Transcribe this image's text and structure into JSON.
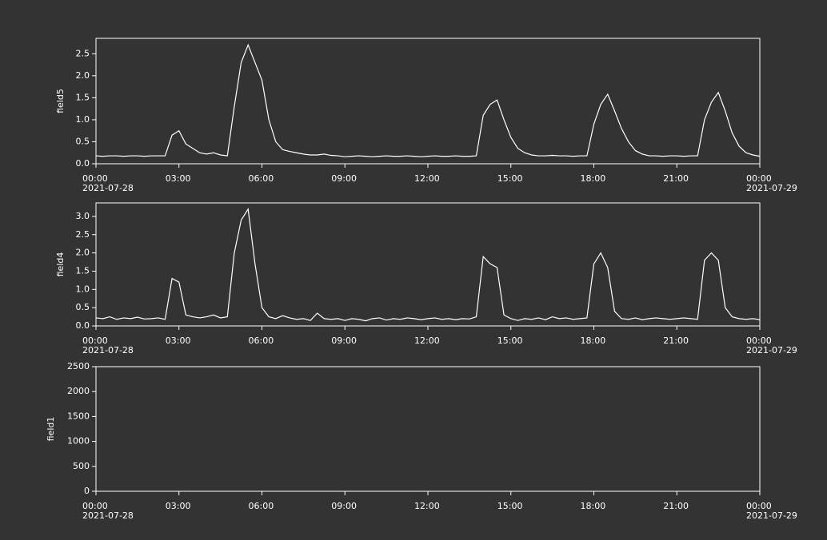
{
  "chart_data": [
    {
      "type": "line",
      "ylabel": "field5",
      "x": [
        "2021-07-28T00:00",
        "2021-07-28T00:15",
        "2021-07-28T00:30",
        "2021-07-28T00:45",
        "2021-07-28T01:00",
        "2021-07-28T01:15",
        "2021-07-28T01:30",
        "2021-07-28T01:45",
        "2021-07-28T02:00",
        "2021-07-28T02:15",
        "2021-07-28T02:30",
        "2021-07-28T02:45",
        "2021-07-28T03:00",
        "2021-07-28T03:15",
        "2021-07-28T03:30",
        "2021-07-28T03:45",
        "2021-07-28T04:00",
        "2021-07-28T04:15",
        "2021-07-28T04:30",
        "2021-07-28T04:45",
        "2021-07-28T05:00",
        "2021-07-28T05:15",
        "2021-07-28T05:30",
        "2021-07-28T05:45",
        "2021-07-28T06:00",
        "2021-07-28T06:15",
        "2021-07-28T06:30",
        "2021-07-28T06:45",
        "2021-07-28T07:00",
        "2021-07-28T07:15",
        "2021-07-28T07:30",
        "2021-07-28T07:45",
        "2021-07-28T08:00",
        "2021-07-28T08:15",
        "2021-07-28T08:30",
        "2021-07-28T08:45",
        "2021-07-28T09:00",
        "2021-07-28T09:15",
        "2021-07-28T09:30",
        "2021-07-28T09:45",
        "2021-07-28T10:00",
        "2021-07-28T10:15",
        "2021-07-28T10:30",
        "2021-07-28T10:45",
        "2021-07-28T11:00",
        "2021-07-28T11:15",
        "2021-07-28T11:30",
        "2021-07-28T11:45",
        "2021-07-28T12:00",
        "2021-07-28T12:15",
        "2021-07-28T12:30",
        "2021-07-28T12:45",
        "2021-07-28T13:00",
        "2021-07-28T13:15",
        "2021-07-28T13:30",
        "2021-07-28T13:45",
        "2021-07-28T14:00",
        "2021-07-28T14:15",
        "2021-07-28T14:30",
        "2021-07-28T14:45",
        "2021-07-28T15:00",
        "2021-07-28T15:15",
        "2021-07-28T15:30",
        "2021-07-28T15:45",
        "2021-07-28T16:00",
        "2021-07-28T16:15",
        "2021-07-28T16:30",
        "2021-07-28T16:45",
        "2021-07-28T17:00",
        "2021-07-28T17:15",
        "2021-07-28T17:30",
        "2021-07-28T17:45",
        "2021-07-28T18:00",
        "2021-07-28T18:15",
        "2021-07-28T18:30",
        "2021-07-28T18:45",
        "2021-07-28T19:00",
        "2021-07-28T19:15",
        "2021-07-28T19:30",
        "2021-07-28T19:45",
        "2021-07-28T20:00",
        "2021-07-28T20:15",
        "2021-07-28T20:30",
        "2021-07-28T20:45",
        "2021-07-28T21:00",
        "2021-07-28T21:15",
        "2021-07-28T21:30",
        "2021-07-28T21:45",
        "2021-07-28T22:00",
        "2021-07-28T22:15",
        "2021-07-28T22:30",
        "2021-07-28T22:45",
        "2021-07-28T23:00",
        "2021-07-28T23:15",
        "2021-07-28T23:30",
        "2021-07-28T23:45",
        "2021-07-29T00:00"
      ],
      "values": [
        0.18,
        0.17,
        0.18,
        0.18,
        0.17,
        0.18,
        0.18,
        0.17,
        0.18,
        0.18,
        0.18,
        0.65,
        0.75,
        0.45,
        0.35,
        0.25,
        0.22,
        0.25,
        0.2,
        0.18,
        1.3,
        2.3,
        2.7,
        2.3,
        1.9,
        1.0,
        0.5,
        0.32,
        0.28,
        0.25,
        0.22,
        0.2,
        0.2,
        0.22,
        0.19,
        0.18,
        0.16,
        0.17,
        0.18,
        0.17,
        0.16,
        0.17,
        0.18,
        0.17,
        0.17,
        0.18,
        0.17,
        0.16,
        0.17,
        0.18,
        0.17,
        0.17,
        0.18,
        0.17,
        0.17,
        0.18,
        1.1,
        1.35,
        1.45,
        1.0,
        0.6,
        0.35,
        0.25,
        0.2,
        0.18,
        0.18,
        0.19,
        0.18,
        0.18,
        0.17,
        0.18,
        0.18,
        0.9,
        1.35,
        1.58,
        1.2,
        0.8,
        0.5,
        0.3,
        0.22,
        0.18,
        0.18,
        0.17,
        0.18,
        0.18,
        0.17,
        0.18,
        0.18,
        1.0,
        1.4,
        1.62,
        1.2,
        0.7,
        0.4,
        0.25,
        0.2,
        0.17
      ],
      "color": "#ffffff",
      "xlim": [
        "2021-07-28T00:00",
        "2021-07-29T00:00"
      ],
      "xticks": [
        {
          "value": "2021-07-28T00:00",
          "label": "00:00\n2021-07-28"
        },
        {
          "value": "2021-07-28T03:00",
          "label": "03:00"
        },
        {
          "value": "2021-07-28T06:00",
          "label": "06:00"
        },
        {
          "value": "2021-07-28T09:00",
          "label": "09:00"
        },
        {
          "value": "2021-07-28T12:00",
          "label": "12:00"
        },
        {
          "value": "2021-07-28T15:00",
          "label": "15:00"
        },
        {
          "value": "2021-07-28T18:00",
          "label": "18:00"
        },
        {
          "value": "2021-07-28T21:00",
          "label": "21:00"
        },
        {
          "value": "2021-07-29T00:00",
          "label": "00:00\n2021-07-29"
        }
      ],
      "ylim": [
        0,
        2.85
      ],
      "yticks": [
        {
          "value": 0,
          "label": "0.0"
        },
        0.5,
        {
          "value": 1,
          "label": "1.0"
        },
        1.5,
        {
          "value": 2,
          "label": "2.0"
        },
        2.5
      ]
    },
    {
      "type": "line",
      "ylabel": "field4",
      "x": [
        "2021-07-28T00:00",
        "2021-07-28T00:15",
        "2021-07-28T00:30",
        "2021-07-28T00:45",
        "2021-07-28T01:00",
        "2021-07-28T01:15",
        "2021-07-28T01:30",
        "2021-07-28T01:45",
        "2021-07-28T02:00",
        "2021-07-28T02:15",
        "2021-07-28T02:30",
        "2021-07-28T02:45",
        "2021-07-28T03:00",
        "2021-07-28T03:15",
        "2021-07-28T03:30",
        "2021-07-28T03:45",
        "2021-07-28T04:00",
        "2021-07-28T04:15",
        "2021-07-28T04:30",
        "2021-07-28T04:45",
        "2021-07-28T05:00",
        "2021-07-28T05:15",
        "2021-07-28T05:30",
        "2021-07-28T05:45",
        "2021-07-28T06:00",
        "2021-07-28T06:15",
        "2021-07-28T06:30",
        "2021-07-28T06:45",
        "2021-07-28T07:00",
        "2021-07-28T07:15",
        "2021-07-28T07:30",
        "2021-07-28T07:45",
        "2021-07-28T08:00",
        "2021-07-28T08:15",
        "2021-07-28T08:30",
        "2021-07-28T08:45",
        "2021-07-28T09:00",
        "2021-07-28T09:15",
        "2021-07-28T09:30",
        "2021-07-28T09:45",
        "2021-07-28T10:00",
        "2021-07-28T10:15",
        "2021-07-28T10:30",
        "2021-07-28T10:45",
        "2021-07-28T11:00",
        "2021-07-28T11:15",
        "2021-07-28T11:30",
        "2021-07-28T11:45",
        "2021-07-28T12:00",
        "2021-07-28T12:15",
        "2021-07-28T12:30",
        "2021-07-28T12:45",
        "2021-07-28T13:00",
        "2021-07-28T13:15",
        "2021-07-28T13:30",
        "2021-07-28T13:45",
        "2021-07-28T14:00",
        "2021-07-28T14:15",
        "2021-07-28T14:30",
        "2021-07-28T14:45",
        "2021-07-28T15:00",
        "2021-07-28T15:15",
        "2021-07-28T15:30",
        "2021-07-28T15:45",
        "2021-07-28T16:00",
        "2021-07-28T16:15",
        "2021-07-28T16:30",
        "2021-07-28T16:45",
        "2021-07-28T17:00",
        "2021-07-28T17:15",
        "2021-07-28T17:30",
        "2021-07-28T17:45",
        "2021-07-28T18:00",
        "2021-07-28T18:15",
        "2021-07-28T18:30",
        "2021-07-28T18:45",
        "2021-07-28T19:00",
        "2021-07-28T19:15",
        "2021-07-28T19:30",
        "2021-07-28T19:45",
        "2021-07-28T20:00",
        "2021-07-28T20:15",
        "2021-07-28T20:30",
        "2021-07-28T20:45",
        "2021-07-28T21:00",
        "2021-07-28T21:15",
        "2021-07-28T21:30",
        "2021-07-28T21:45",
        "2021-07-28T22:00",
        "2021-07-28T22:15",
        "2021-07-28T22:30",
        "2021-07-28T22:45",
        "2021-07-28T23:00",
        "2021-07-28T23:15",
        "2021-07-28T23:30",
        "2021-07-28T23:45",
        "2021-07-29T00:00"
      ],
      "values": [
        0.22,
        0.2,
        0.25,
        0.18,
        0.22,
        0.2,
        0.24,
        0.19,
        0.2,
        0.22,
        0.18,
        1.3,
        1.2,
        0.3,
        0.25,
        0.22,
        0.25,
        0.3,
        0.22,
        0.25,
        2.0,
        2.9,
        3.2,
        1.7,
        0.5,
        0.25,
        0.2,
        0.28,
        0.22,
        0.18,
        0.2,
        0.15,
        0.35,
        0.2,
        0.18,
        0.2,
        0.15,
        0.2,
        0.18,
        0.14,
        0.2,
        0.22,
        0.16,
        0.2,
        0.18,
        0.22,
        0.2,
        0.17,
        0.2,
        0.22,
        0.18,
        0.2,
        0.17,
        0.2,
        0.19,
        0.25,
        1.9,
        1.7,
        1.6,
        0.3,
        0.2,
        0.15,
        0.2,
        0.18,
        0.22,
        0.17,
        0.25,
        0.2,
        0.22,
        0.18,
        0.2,
        0.22,
        1.7,
        2.0,
        1.6,
        0.4,
        0.2,
        0.18,
        0.22,
        0.17,
        0.2,
        0.22,
        0.2,
        0.18,
        0.2,
        0.22,
        0.2,
        0.18,
        1.8,
        2.0,
        1.8,
        0.5,
        0.25,
        0.2,
        0.18,
        0.2,
        0.17
      ],
      "color": "#ffffff",
      "xlim": [
        "2021-07-28T00:00",
        "2021-07-29T00:00"
      ],
      "xticks": [
        {
          "value": "2021-07-28T00:00",
          "label": "00:00\n2021-07-28"
        },
        {
          "value": "2021-07-28T03:00",
          "label": "03:00"
        },
        {
          "value": "2021-07-28T06:00",
          "label": "06:00"
        },
        {
          "value": "2021-07-28T09:00",
          "label": "09:00"
        },
        {
          "value": "2021-07-28T12:00",
          "label": "12:00"
        },
        {
          "value": "2021-07-28T15:00",
          "label": "15:00"
        },
        {
          "value": "2021-07-28T18:00",
          "label": "18:00"
        },
        {
          "value": "2021-07-28T21:00",
          "label": "21:00"
        },
        {
          "value": "2021-07-29T00:00",
          "label": "00:00\n2021-07-29"
        }
      ],
      "ylim": [
        0,
        3.37
      ],
      "yticks": [
        {
          "value": 0,
          "label": "0.0"
        },
        0.5,
        {
          "value": 1,
          "label": "1.0"
        },
        1.5,
        {
          "value": 2,
          "label": "2.0"
        },
        2.5,
        {
          "value": 3,
          "label": "3.0"
        }
      ]
    },
    {
      "type": "line",
      "ylabel": "field1",
      "xlim": [
        "2021-07-28T00:00",
        "2021-07-29T00:00"
      ],
      "xticks": [
        {
          "value": "2021-07-28T00:00",
          "label": "00:00\n2021-07-28"
        },
        {
          "value": "2021-07-28T03:00",
          "label": "03:00"
        },
        {
          "value": "2021-07-28T06:00",
          "label": "06:00"
        },
        {
          "value": "2021-07-28T09:00",
          "label": "09:00"
        },
        {
          "value": "2021-07-28T12:00",
          "label": "12:00"
        },
        {
          "value": "2021-07-28T15:00",
          "label": "15:00"
        },
        {
          "value": "2021-07-28T18:00",
          "label": "18:00"
        },
        {
          "value": "2021-07-28T21:00",
          "label": "21:00"
        },
        {
          "value": "2021-07-29T00:00",
          "label": "00:00\n2021-07-29"
        }
      ],
      "ylim": [
        0,
        2500
      ],
      "yticks": [
        0,
        500,
        1000,
        1500,
        2000,
        2500
      ]
    }
  ]
}
